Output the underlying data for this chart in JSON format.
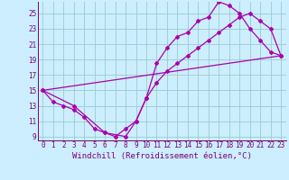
{
  "xlabel": "Windchill (Refroidissement éolien,°C)",
  "bg_color": "#cceeff",
  "line_color": "#aa00aa",
  "grid_color": "#99cccc",
  "xlim": [
    -0.5,
    23.5
  ],
  "ylim": [
    8.5,
    26.5
  ],
  "xticks": [
    0,
    1,
    2,
    3,
    4,
    5,
    6,
    7,
    8,
    9,
    10,
    11,
    12,
    13,
    14,
    15,
    16,
    17,
    18,
    19,
    20,
    21,
    22,
    23
  ],
  "yticks": [
    9,
    11,
    13,
    15,
    17,
    19,
    21,
    23,
    25
  ],
  "line1_x": [
    0,
    1,
    2,
    3,
    4,
    5,
    6,
    7,
    8,
    9,
    10,
    11,
    12,
    13,
    14,
    15,
    16,
    17,
    18,
    19,
    20,
    21,
    22,
    23
  ],
  "line1_y": [
    15.0,
    13.5,
    13.0,
    12.5,
    11.5,
    10.0,
    9.5,
    9.0,
    10.0,
    11.0,
    14.0,
    18.5,
    20.5,
    22.0,
    22.5,
    24.0,
    24.5,
    26.5,
    26.0,
    25.0,
    23.0,
    21.5,
    20.0,
    19.5
  ],
  "line2_x": [
    0,
    3,
    6,
    8,
    9,
    10,
    11,
    12,
    13,
    14,
    15,
    16,
    17,
    18,
    19,
    20,
    21,
    22,
    23
  ],
  "line2_y": [
    15.0,
    13.0,
    9.5,
    9.0,
    11.0,
    14.0,
    16.0,
    17.5,
    18.5,
    19.5,
    20.5,
    21.5,
    22.5,
    23.5,
    24.5,
    25.0,
    24.0,
    23.0,
    19.5
  ],
  "line3_x": [
    0,
    23
  ],
  "line3_y": [
    15.0,
    19.5
  ],
  "font_color": "#770077",
  "tick_fontsize": 5.5,
  "label_fontsize": 6.5,
  "marker_size": 2.0,
  "lw": 0.9
}
